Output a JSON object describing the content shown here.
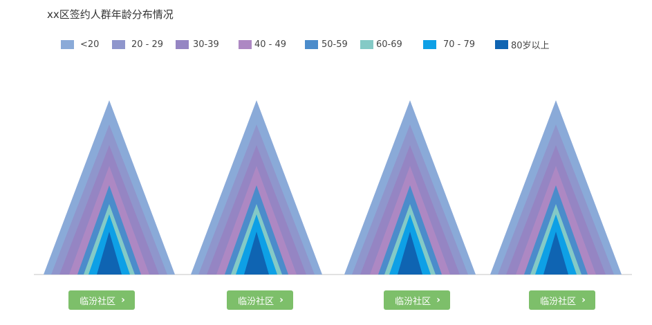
{
  "chart_data": {
    "type": "area",
    "title": "xx区签约人群年龄分布情况",
    "legend_position": "top-left",
    "grid": false,
    "series": [
      {
        "name": "<20",
        "color": "#8aaad8"
      },
      {
        "name": "20 - 29",
        "color": "#8f96cc"
      },
      {
        "name": "30-39",
        "color": "#9585c3"
      },
      {
        "name": "40 - 49",
        "color": "#ad88c3"
      },
      {
        "name": "50-59",
        "color": "#4b8ccb"
      },
      {
        "name": "60-69",
        "color": "#84cac6"
      },
      {
        "name": "70 - 79",
        "color": "#0ea0e6"
      },
      {
        "name": "80岁以上",
        "color": "#0f64b2"
      }
    ],
    "categories": [
      "临汾社区",
      "临汾社区",
      "临汾社区",
      "临汾社区"
    ]
  },
  "buttons": [
    {
      "label": "临汾社区"
    },
    {
      "label": "临汾社区"
    },
    {
      "label": "临汾社区"
    },
    {
      "label": "临汾社区"
    }
  ],
  "chevron": "›"
}
